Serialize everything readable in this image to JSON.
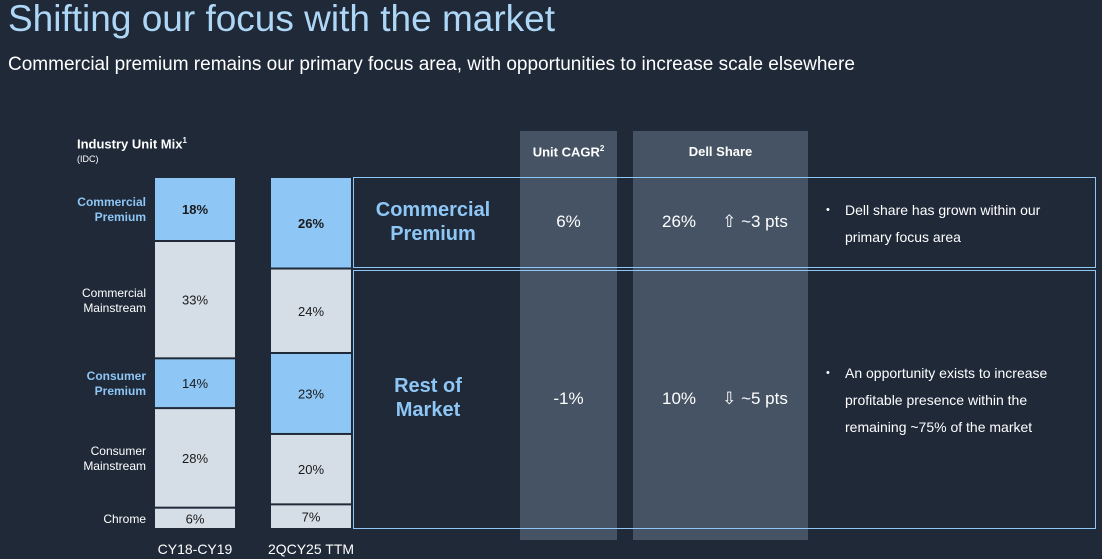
{
  "title": "Shifting our focus with the market",
  "subtitle": "Commercial premium remains our primary focus area, with opportunities to increase scale elsewhere",
  "chart_data": {
    "type": "bar",
    "stacked": true,
    "title": "Industry Unit Mix",
    "title_sup": "1",
    "source": "(IDC)",
    "categories": [
      "CY18-CY19",
      "2QCY25 TTM"
    ],
    "series": [
      {
        "name": "Commercial Premium",
        "values": [
          18,
          26
        ],
        "highlight": true
      },
      {
        "name": "Commercial Mainstream",
        "values": [
          33,
          24
        ],
        "highlight": false
      },
      {
        "name": "Consumer Premium",
        "values": [
          14,
          23
        ],
        "highlight": true
      },
      {
        "name": "Consumer Mainstream",
        "values": [
          28,
          20
        ],
        "highlight": false
      },
      {
        "name": "Chrome",
        "values": [
          6,
          7
        ],
        "highlight": false
      }
    ],
    "series_labels": [
      "Commercial\nPremium",
      "Commercial\nMainstream",
      "Consumer\nPremium",
      "Consumer\nMainstream",
      "Chrome"
    ],
    "value_labels": [
      [
        "18%",
        "26%"
      ],
      [
        "33%",
        "24%"
      ],
      [
        "14%",
        "23%"
      ],
      [
        "28%",
        "20%"
      ],
      [
        "6%",
        "7%"
      ]
    ],
    "ylim": [
      0,
      100
    ]
  },
  "columns": {
    "cagr": "Unit CAGR",
    "cagr_sup": "2",
    "share": "Dell Share"
  },
  "rows": [
    {
      "name": "Commercial\nPremium",
      "cagr": "6%",
      "share": "26%",
      "change": "⇧ ~3 pts",
      "bullet": "Dell share has grown within our primary focus area"
    },
    {
      "name": "Rest of\nMarket",
      "cagr": "-1%",
      "share": "10%",
      "change": "⇩ ~5 pts",
      "bullet": "An opportunity exists to increase profitable presence within the remaining ~75% of the market"
    }
  ],
  "colors": {
    "background": "#1f2938",
    "highlight_bar": "#8ec6f5",
    "plain_bar": "#d5dde7",
    "accent_text": "#8ec6f5",
    "title": "#aed7f7",
    "column_band": "#455364",
    "bullet_dot": "•"
  }
}
